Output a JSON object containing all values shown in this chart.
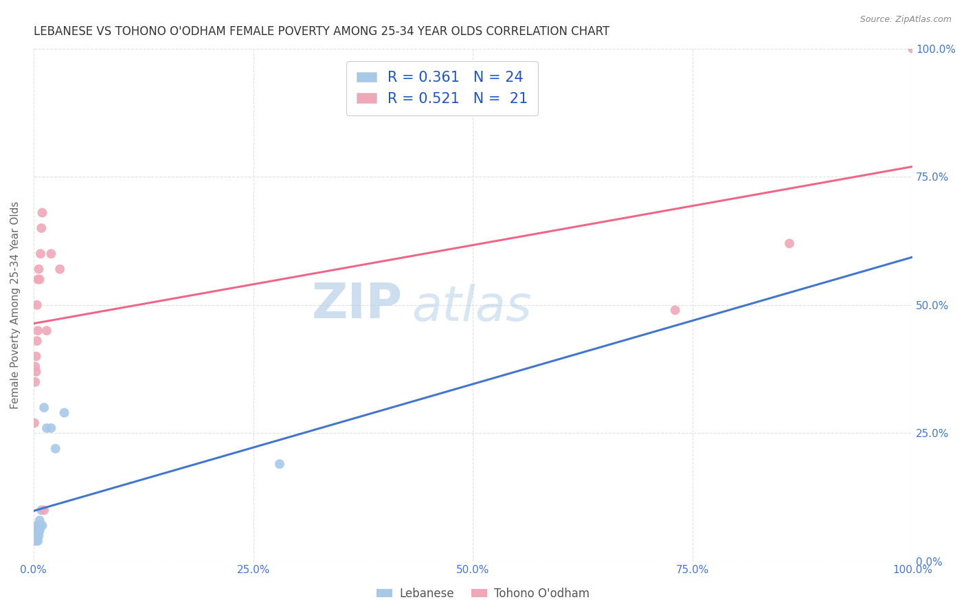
{
  "title": "LEBANESE VS TOHONO O'ODHAM FEMALE POVERTY AMONG 25-34 YEAR OLDS CORRELATION CHART",
  "source": "Source: ZipAtlas.com",
  "ylabel": "Female Poverty Among 25-34 Year Olds",
  "xlim": [
    0,
    1.0
  ],
  "ylim": [
    0,
    1.0
  ],
  "background_color": "#ffffff",
  "grid_color": "#e0e0e0",
  "lebanese_color": "#a8c8e8",
  "tohono_color": "#f0a8b8",
  "lebanese_line_color": "#4477cc",
  "tohono_line_color": "#ee6688",
  "legend_R_color": "#2255bb",
  "R_lebanese": 0.361,
  "N_lebanese": 24,
  "R_tohono": 0.521,
  "N_tohono": 21,
  "lebanese_x": [
    0.001,
    0.002,
    0.002,
    0.003,
    0.003,
    0.003,
    0.004,
    0.004,
    0.005,
    0.005,
    0.006,
    0.006,
    0.006,
    0.007,
    0.007,
    0.008,
    0.009,
    0.01,
    0.012,
    0.015,
    0.02,
    0.025,
    0.035,
    0.28
  ],
  "lebanese_y": [
    0.04,
    0.05,
    0.06,
    0.04,
    0.05,
    0.06,
    0.05,
    0.07,
    0.04,
    0.06,
    0.05,
    0.06,
    0.07,
    0.06,
    0.08,
    0.07,
    0.1,
    0.07,
    0.3,
    0.26,
    0.26,
    0.22,
    0.29,
    0.19
  ],
  "tohono_x": [
    0.001,
    0.002,
    0.002,
    0.003,
    0.003,
    0.004,
    0.004,
    0.005,
    0.005,
    0.006,
    0.007,
    0.008,
    0.009,
    0.01,
    0.012,
    0.015,
    0.02,
    0.03,
    0.73,
    0.86,
    1.0
  ],
  "tohono_y": [
    0.27,
    0.35,
    0.38,
    0.37,
    0.4,
    0.43,
    0.5,
    0.55,
    0.45,
    0.57,
    0.55,
    0.6,
    0.65,
    0.68,
    0.1,
    0.45,
    0.6,
    0.57,
    0.49,
    0.62,
    1.0
  ],
  "watermark_zip": "ZIP",
  "watermark_atlas": "atlas",
  "marker_size": 100
}
